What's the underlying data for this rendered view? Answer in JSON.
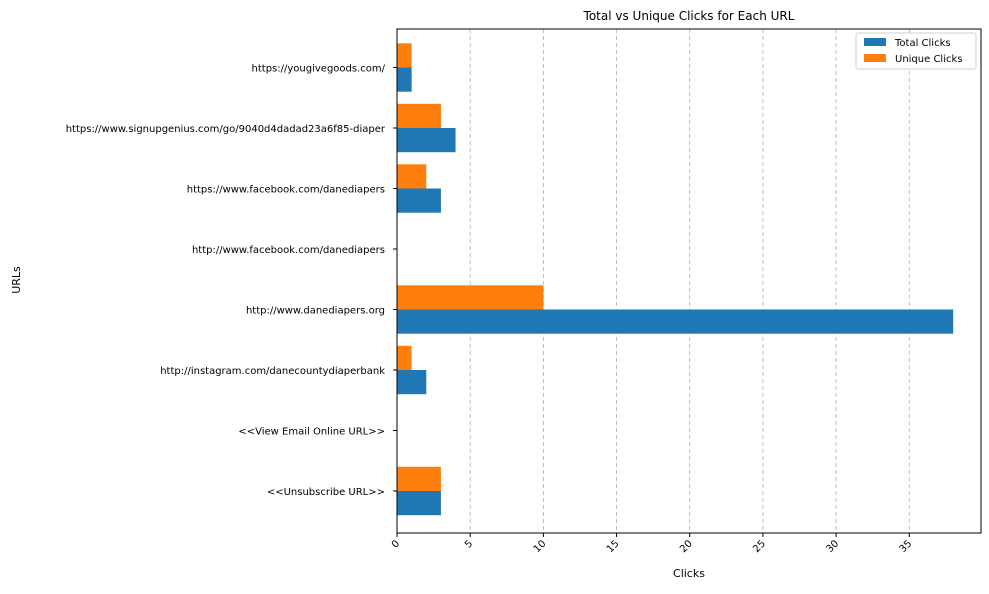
{
  "chart_data": {
    "type": "bar",
    "orientation": "horizontal",
    "title": "Total vs Unique Clicks for Each URL",
    "xlabel": "Clicks",
    "ylabel": "URLs",
    "categories": [
      "<<Unsubscribe URL>>",
      "<<View Email Online URL>>",
      "http://instagram.com/danecountydiaperbank",
      "http://www.danediapers.org",
      "http://www.facebook.com/danediapers",
      "https://www.facebook.com/danediapers",
      "https://www.signupgenius.com/go/9040d4dadad23a6f85-diaper",
      "https://yougivegoods.com/"
    ],
    "series": [
      {
        "name": "Total Clicks",
        "color": "#1f77b4",
        "values": [
          3,
          0,
          2,
          38,
          0,
          3,
          4,
          1
        ]
      },
      {
        "name": "Unique Clicks",
        "color": "#ff7f0e",
        "values": [
          3,
          0,
          1,
          10,
          0,
          2,
          3,
          1
        ]
      }
    ],
    "xlim": [
      0,
      40
    ],
    "xticks": [
      0,
      5,
      10,
      15,
      20,
      25,
      30,
      35
    ],
    "xtick_labels": [
      "0",
      "5",
      "10",
      "15",
      "20",
      "25",
      "30",
      "35"
    ],
    "grid": "x-dashed",
    "legend": "top-right"
  }
}
